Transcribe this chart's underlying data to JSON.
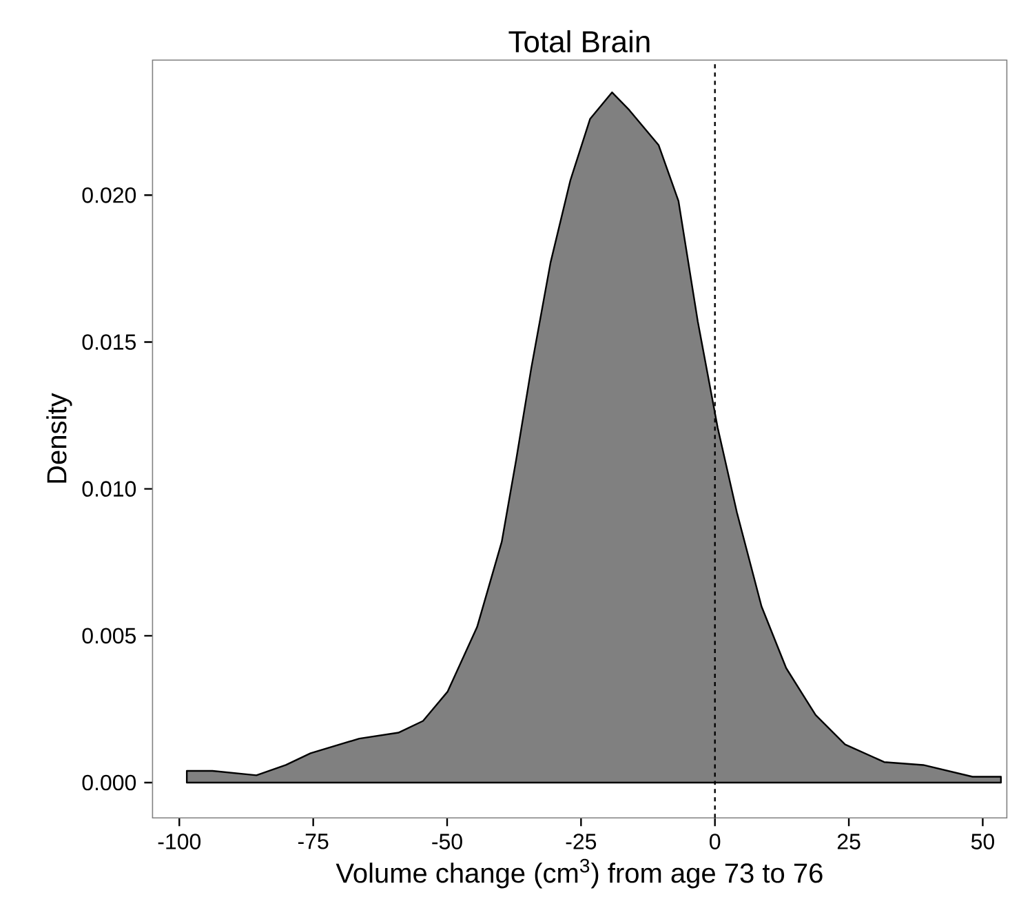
{
  "chart_data": {
    "type": "area",
    "title": "Total Brain",
    "xlabel": "Volume change (cm$^{3}$) from age 73 to 76",
    "ylabel": "Density",
    "x": [
      -98.6,
      -93.8,
      -85.6,
      -80.1,
      -75.5,
      -66.4,
      -59.1,
      -54.5,
      -49.9,
      -44.4,
      -39.8,
      -37.1,
      -34.3,
      -30.7,
      -27.0,
      -23.3,
      -19.2,
      -16.0,
      -10.5,
      -6.8,
      -3.2,
      0.5,
      4.1,
      8.7,
      13.3,
      18.8,
      24.3,
      31.6,
      38.9,
      48.1,
      53.4
    ],
    "series": [
      {
        "color": "#808080",
        "values": [
          0.0004,
          0.0004,
          0.00025,
          0.0006,
          0.001,
          0.0015,
          0.0017,
          0.0021,
          0.0031,
          0.0053,
          0.0082,
          0.011,
          0.0141,
          0.0177,
          0.0205,
          0.0226,
          0.0235,
          0.0229,
          0.0217,
          0.0198,
          0.0157,
          0.0121,
          0.0092,
          0.006,
          0.0039,
          0.0023,
          0.0013,
          0.0007,
          0.0006,
          0.0002,
          0.0002
        ]
      }
    ],
    "xlim": [
      -105,
      54.5
    ],
    "ylim": [
      -0.0012,
      0.0246
    ],
    "xticks": [
      -100,
      -75,
      -50,
      -25,
      0,
      25,
      50
    ],
    "yticks": [
      {
        "value": 0,
        "label": "0.000"
      },
      {
        "value": 0.005,
        "label": "0.005"
      },
      {
        "value": 0.01,
        "label": "0.010"
      },
      {
        "value": 0.015,
        "label": "0.015"
      },
      {
        "value": 0.02,
        "label": "0.020"
      }
    ],
    "ref_lines": [
      {
        "axis": "x",
        "value": 0,
        "line_style": "dashed"
      }
    ]
  }
}
